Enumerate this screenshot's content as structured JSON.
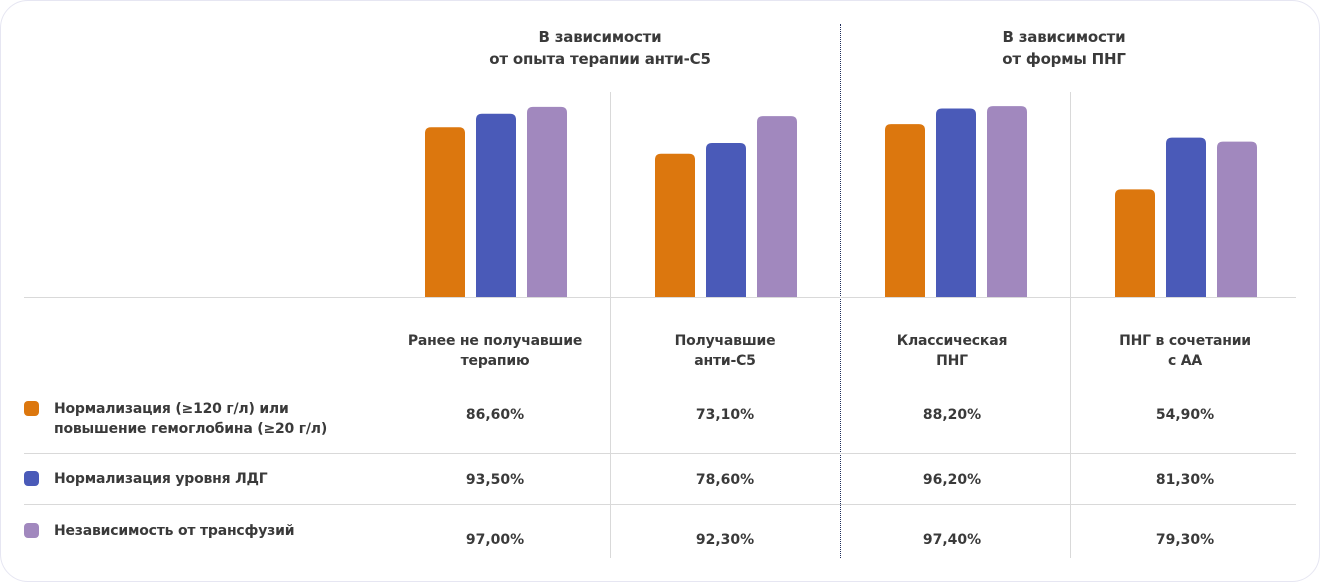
{
  "group_titles": [
    {
      "line1": "В зависимости",
      "line2": "от опыта терапии анти-С5"
    },
    {
      "line1": "В зависимости",
      "line2": "от формы ПНГ"
    }
  ],
  "categories": [
    {
      "line1": "Ранее не получавшие",
      "line2": "терапию"
    },
    {
      "line1": "Получавшие",
      "line2": "анти-С5"
    },
    {
      "line1": "Классическая",
      "line2": "ПНГ"
    },
    {
      "line1": "ПНГ в сочетании",
      "line2": "с АА"
    }
  ],
  "legend": [
    {
      "line1": "Нормализация (≥120 г/л) или",
      "line2": "повышение гемоглобина (≥20 г/л)",
      "color": "#dc770e"
    },
    {
      "line1": "Нормализация уровня ЛДГ",
      "line2": "",
      "color": "#4a5ab8"
    },
    {
      "line1": "Независимость от трансфузий",
      "line2": "",
      "color": "#a188be"
    }
  ],
  "table": [
    [
      "86,60%",
      "73,10%",
      "88,20%",
      "54,90%"
    ],
    [
      "93,50%",
      "78,60%",
      "96,20%",
      "81,30%"
    ],
    [
      "97,00%",
      "92,30%",
      "97,40%",
      "79,30%"
    ]
  ],
  "chart_data": {
    "type": "bar",
    "title": "",
    "groups": [
      "В зависимости от опыта терапии анти-С5",
      "В зависимости от формы ПНГ"
    ],
    "categories": [
      "Ранее не получавшие терапию",
      "Получавшие анти-С5",
      "Классическая ПНГ",
      "ПНГ в сочетании с АА"
    ],
    "series": [
      {
        "name": "Нормализация (≥120 г/л) или повышение гемоглобина (≥20 г/л)",
        "color": "#dc770e",
        "values": [
          86.6,
          73.1,
          88.2,
          54.9
        ]
      },
      {
        "name": "Нормализация уровня ЛДГ",
        "color": "#4a5ab8",
        "values": [
          93.5,
          78.6,
          96.2,
          81.3
        ]
      },
      {
        "name": "Независимость от трансфузий",
        "color": "#a188be",
        "values": [
          97.0,
          92.3,
          97.4,
          79.3
        ]
      }
    ],
    "xlabel": "",
    "ylabel": "",
    "ylim": [
      0,
      100
    ],
    "grid": false,
    "legend_position": "bottom-left"
  }
}
